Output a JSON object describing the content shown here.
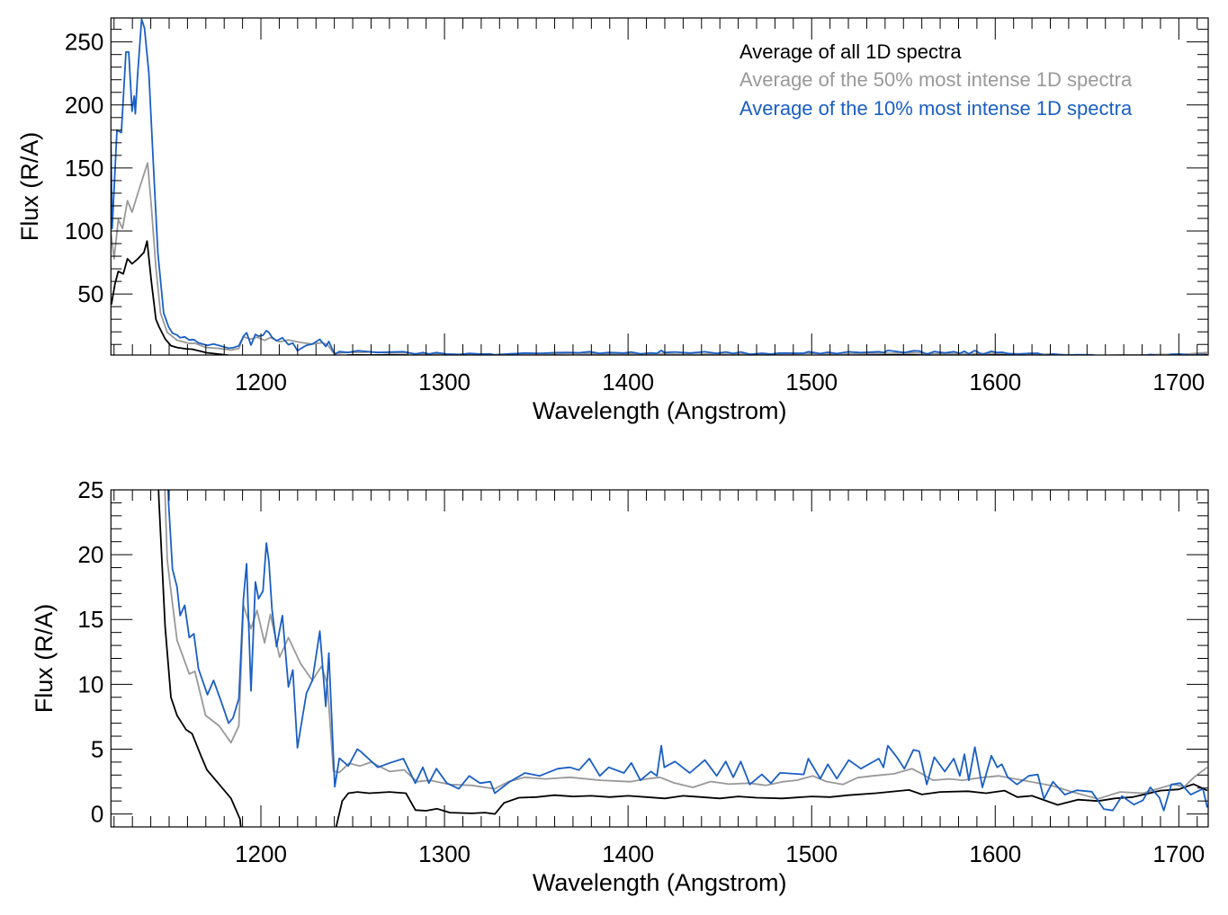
{
  "chart_data": [
    {
      "type": "line",
      "panel": "top",
      "xlabel": "Wavelength (Angstrom)",
      "ylabel": "Flux (R/A)",
      "xlim": [
        1118.3,
        1716
      ],
      "ylim": [
        1.6,
        269
      ],
      "xticks": [
        1200,
        1300,
        1400,
        1500,
        1600,
        1700
      ],
      "yticks": [
        50,
        100,
        150,
        200,
        250
      ],
      "x_minor_step": 10,
      "y_minor_step": 10,
      "legend_placement": "top-right",
      "legend": [
        {
          "label": "Average of all 1D spectra",
          "color": "#000000"
        },
        {
          "label": "Average of the 50% most intense 1D spectra",
          "color": "#999999"
        },
        {
          "label": "Average of the 10% most intense 1D spectra",
          "color": "#1a5fc4"
        }
      ]
    },
    {
      "type": "line",
      "panel": "bottom",
      "xlabel": "Wavelength (Angstrom)",
      "ylabel": "Flux (R/A)",
      "xlim": [
        1118.3,
        1716
      ],
      "ylim": [
        -1,
        25
      ],
      "xticks": [
        1200,
        1300,
        1400,
        1500,
        1600,
        1700
      ],
      "yticks": [
        0,
        5,
        10,
        15,
        20,
        25
      ],
      "x_minor_step": 10,
      "y_minor_step": 1
    }
  ],
  "series": [
    {
      "name": "Average of all 1D spectra",
      "color": "#000000",
      "points": [
        [
          1118.3,
          42
        ],
        [
          1118.6,
          42
        ],
        [
          1120.5,
          58
        ],
        [
          1122.3,
          68
        ],
        [
          1125,
          66
        ],
        [
          1127.3,
          78
        ],
        [
          1129.8,
          74
        ],
        [
          1133,
          78
        ],
        [
          1136.3,
          83
        ],
        [
          1138,
          92
        ],
        [
          1140.4,
          59
        ],
        [
          1142.8,
          30
        ],
        [
          1144.5,
          24
        ],
        [
          1147.8,
          14.5
        ],
        [
          1151,
          9
        ],
        [
          1154.3,
          7.6
        ],
        [
          1159.2,
          6.5
        ],
        [
          1162.5,
          6.2
        ],
        [
          1167.3,
          4.5
        ],
        [
          1170.6,
          3.4
        ],
        [
          1177.2,
          2.3
        ],
        [
          1183.7,
          1.2
        ],
        [
          1188.6,
          -0.4
        ],
        [
          1190.5,
          -3
        ],
        [
          1238,
          -3
        ],
        [
          1241,
          -1
        ],
        [
          1244.3,
          1.0
        ],
        [
          1247.6,
          1.6
        ],
        [
          1252.5,
          1.7
        ],
        [
          1259,
          1.6
        ],
        [
          1270,
          1.7
        ],
        [
          1279,
          1.6
        ],
        [
          1284.2,
          0.3
        ],
        [
          1290,
          0.25
        ],
        [
          1296,
          0.4
        ],
        [
          1303,
          0.1
        ],
        [
          1315,
          0.05
        ],
        [
          1322,
          0.1
        ],
        [
          1327.5,
          0
        ],
        [
          1332.4,
          0.85
        ],
        [
          1340.5,
          1.25
        ],
        [
          1350,
          1.3
        ],
        [
          1360,
          1.45
        ],
        [
          1370,
          1.35
        ],
        [
          1380,
          1.4
        ],
        [
          1390,
          1.3
        ],
        [
          1400,
          1.4
        ],
        [
          1410,
          1.3
        ],
        [
          1420,
          1.2
        ],
        [
          1430,
          1.4
        ],
        [
          1440,
          1.3
        ],
        [
          1450,
          1.2
        ],
        [
          1460,
          1.35
        ],
        [
          1470,
          1.25
        ],
        [
          1484,
          1.2
        ],
        [
          1500,
          1.35
        ],
        [
          1510,
          1.3
        ],
        [
          1520,
          1.45
        ],
        [
          1535,
          1.6
        ],
        [
          1553,
          1.85
        ],
        [
          1560,
          1.5
        ],
        [
          1570,
          1.7
        ],
        [
          1585,
          1.75
        ],
        [
          1595,
          1.6
        ],
        [
          1605,
          1.8
        ],
        [
          1612,
          1.3
        ],
        [
          1620,
          1.4
        ],
        [
          1634,
          0.7
        ],
        [
          1645,
          1.1
        ],
        [
          1656,
          1.0
        ],
        [
          1665,
          1.2
        ],
        [
          1675,
          1.3
        ],
        [
          1690,
          1.8
        ],
        [
          1700,
          1.9
        ],
        [
          1708,
          2.3
        ],
        [
          1715.5,
          1.8
        ]
      ]
    },
    {
      "name": "Average of the 50% most intense 1D spectra",
      "color": "#999999",
      "points": [
        [
          1118.3,
          99
        ],
        [
          1120,
          78
        ],
        [
          1122.3,
          109
        ],
        [
          1124.6,
          102
        ],
        [
          1127.3,
          124
        ],
        [
          1129.8,
          115
        ],
        [
          1133,
          130
        ],
        [
          1136.3,
          145
        ],
        [
          1138.3,
          154
        ],
        [
          1140.4,
          118
        ],
        [
          1142.8,
          71
        ],
        [
          1145.3,
          35
        ],
        [
          1149,
          19.6
        ],
        [
          1151,
          17.2
        ],
        [
          1154.3,
          13.4
        ],
        [
          1161,
          10.8
        ],
        [
          1164,
          11
        ],
        [
          1169.9,
          7.6
        ],
        [
          1177.2,
          6.8
        ],
        [
          1183.7,
          5.5
        ],
        [
          1188,
          6.8
        ],
        [
          1190.5,
          16.1
        ],
        [
          1194.6,
          14.3
        ],
        [
          1197.9,
          15.7
        ],
        [
          1202,
          13.2
        ],
        [
          1205.2,
          15.4
        ],
        [
          1210.2,
          12.1
        ],
        [
          1215,
          13.6
        ],
        [
          1221.6,
          11.6
        ],
        [
          1228,
          10.3
        ],
        [
          1233,
          11.4
        ],
        [
          1236.2,
          10
        ],
        [
          1239.5,
          3.3
        ],
        [
          1242.7,
          3.2
        ],
        [
          1248,
          3.9
        ],
        [
          1254,
          3.7
        ],
        [
          1260,
          4.0
        ],
        [
          1270.2,
          3.27
        ],
        [
          1278,
          3.4
        ],
        [
          1284.9,
          2.49
        ],
        [
          1292,
          2.6
        ],
        [
          1302.9,
          2.27
        ],
        [
          1315,
          2.2
        ],
        [
          1327.4,
          1.94
        ],
        [
          1335,
          2.5
        ],
        [
          1343.8,
          2.83
        ],
        [
          1355,
          2.7
        ],
        [
          1368.3,
          2.83
        ],
        [
          1385,
          2.6
        ],
        [
          1401,
          2.49
        ],
        [
          1410,
          2.7
        ],
        [
          1417.3,
          2.83
        ],
        [
          1425,
          2.4
        ],
        [
          1435.3,
          2.05
        ],
        [
          1445,
          2.5
        ],
        [
          1455,
          2.3
        ],
        [
          1466.3,
          2.38
        ],
        [
          1475,
          2.2
        ],
        [
          1484.3,
          2.49
        ],
        [
          1492,
          2.6
        ],
        [
          1500.6,
          2.94
        ],
        [
          1508,
          2.5
        ],
        [
          1517,
          2.27
        ],
        [
          1525,
          2.8
        ],
        [
          1533.3,
          2.94
        ],
        [
          1545,
          3.1
        ],
        [
          1554.6,
          3.49
        ],
        [
          1560,
          3.1
        ],
        [
          1566,
          2.6
        ],
        [
          1575,
          2.7
        ],
        [
          1582.3,
          2.6
        ],
        [
          1592,
          2.8
        ],
        [
          1602,
          2.94
        ],
        [
          1615,
          2.6
        ],
        [
          1631.4,
          2.16
        ],
        [
          1642,
          1.7
        ],
        [
          1655.9,
          1.16
        ],
        [
          1668,
          1.7
        ],
        [
          1680.4,
          1.6
        ],
        [
          1690,
          2.0
        ],
        [
          1696.7,
          2.27
        ],
        [
          1703,
          2.1
        ],
        [
          1708.2,
          2.83
        ],
        [
          1715.5,
          3.6
        ]
      ]
    },
    {
      "name": "Average of the 10% most intense 1D spectra",
      "color": "#1a5fc4",
      "points": [
        [
          1118.3,
          171
        ],
        [
          1119,
          102
        ],
        [
          1121.6,
          180
        ],
        [
          1124,
          178
        ],
        [
          1126.5,
          242
        ],
        [
          1128,
          242
        ],
        [
          1129.8,
          195
        ],
        [
          1131,
          207
        ],
        [
          1131.6,
          193
        ],
        [
          1132.8,
          223
        ],
        [
          1135,
          268
        ],
        [
          1136.6,
          261
        ],
        [
          1139,
          225
        ],
        [
          1141.4,
          154
        ],
        [
          1143.9,
          82.6
        ],
        [
          1147,
          35
        ],
        [
          1149.7,
          24
        ],
        [
          1151.8,
          18.9
        ],
        [
          1154.3,
          17.5
        ],
        [
          1156,
          15.3
        ],
        [
          1158.5,
          16.1
        ],
        [
          1161,
          13.6
        ],
        [
          1163.5,
          13.9
        ],
        [
          1166,
          11.2
        ],
        [
          1170.9,
          9.2
        ],
        [
          1174.2,
          10.3
        ],
        [
          1178.3,
          8.7
        ],
        [
          1182.4,
          7.0
        ],
        [
          1184.8,
          7.4
        ],
        [
          1188,
          8.9
        ],
        [
          1190.5,
          16.6
        ],
        [
          1192.2,
          19.3
        ],
        [
          1194.6,
          9.5
        ],
        [
          1197,
          17.9
        ],
        [
          1198.7,
          16.6
        ],
        [
          1201.1,
          17.2
        ],
        [
          1203,
          20.9
        ],
        [
          1204.4,
          19.4
        ],
        [
          1206,
          15.8
        ],
        [
          1208.5,
          12.9
        ],
        [
          1211.7,
          15.3
        ],
        [
          1215,
          9.8
        ],
        [
          1217.4,
          11.1
        ],
        [
          1219.9,
          5.1
        ],
        [
          1224.8,
          9.3
        ],
        [
          1228,
          10.3
        ],
        [
          1232.1,
          14.1
        ],
        [
          1235.3,
          8.3
        ],
        [
          1237,
          12.4
        ],
        [
          1240.2,
          2.1
        ],
        [
          1242.7,
          4.3
        ],
        [
          1247.6,
          3.7
        ],
        [
          1252.5,
          5.0
        ],
        [
          1254.5,
          4.8
        ],
        [
          1263.7,
          3.6
        ],
        [
          1270.2,
          3.94
        ],
        [
          1277.6,
          4.27
        ],
        [
          1284.1,
          2.38
        ],
        [
          1288.2,
          3.6
        ],
        [
          1291.5,
          2.38
        ],
        [
          1295.6,
          3.49
        ],
        [
          1301.3,
          2.38
        ],
        [
          1307.8,
          1.94
        ],
        [
          1313.5,
          2.94
        ],
        [
          1319.3,
          2.38
        ],
        [
          1325,
          2.49
        ],
        [
          1327.4,
          1.6
        ],
        [
          1335.6,
          2.49
        ],
        [
          1343.8,
          3.16
        ],
        [
          1351.9,
          2.94
        ],
        [
          1361.7,
          3.49
        ],
        [
          1368.3,
          3.6
        ],
        [
          1373.2,
          3.38
        ],
        [
          1378.9,
          4.27
        ],
        [
          1384.6,
          2.94
        ],
        [
          1389.5,
          3.6
        ],
        [
          1397.7,
          3.16
        ],
        [
          1401.8,
          3.94
        ],
        [
          1406.7,
          2.6
        ],
        [
          1412.4,
          3.27
        ],
        [
          1415.7,
          2.94
        ],
        [
          1418.1,
          5.27
        ],
        [
          1419.7,
          3.6
        ],
        [
          1425.5,
          4.05
        ],
        [
          1433.6,
          3.16
        ],
        [
          1441.8,
          4.16
        ],
        [
          1448.3,
          2.94
        ],
        [
          1453.2,
          4.05
        ],
        [
          1457.3,
          2.83
        ],
        [
          1461.4,
          4.05
        ],
        [
          1466.3,
          2.27
        ],
        [
          1472.9,
          3.05
        ],
        [
          1477.8,
          2.38
        ],
        [
          1482.7,
          3.16
        ],
        [
          1484.3,
          3.16
        ],
        [
          1495.7,
          3.05
        ],
        [
          1498.2,
          4.27
        ],
        [
          1504.7,
          2.72
        ],
        [
          1508.8,
          3.83
        ],
        [
          1513.7,
          2.72
        ],
        [
          1520.2,
          4.16
        ],
        [
          1526.8,
          3.49
        ],
        [
          1536.6,
          4.27
        ],
        [
          1539.1,
          3.6
        ],
        [
          1541.5,
          5.27
        ],
        [
          1546.4,
          4.38
        ],
        [
          1550.5,
          3.49
        ],
        [
          1555.4,
          4.94
        ],
        [
          1558.6,
          4.83
        ],
        [
          1562.7,
          2.27
        ],
        [
          1566.8,
          4.38
        ],
        [
          1572.5,
          3.27
        ],
        [
          1577.4,
          4.27
        ],
        [
          1580.7,
          2.94
        ],
        [
          1583.2,
          4.6
        ],
        [
          1585.6,
          2.6
        ],
        [
          1588.9,
          5.16
        ],
        [
          1593,
          2.05
        ],
        [
          1597.9,
          4.49
        ],
        [
          1601.1,
          3.6
        ],
        [
          1603.6,
          3.83
        ],
        [
          1606.8,
          2.83
        ],
        [
          1611.8,
          2.27
        ],
        [
          1618.3,
          2.94
        ],
        [
          1623.2,
          3.05
        ],
        [
          1626.5,
          1.16
        ],
        [
          1631.4,
          2.49
        ],
        [
          1637.9,
          1.49
        ],
        [
          1644.4,
          1.83
        ],
        [
          1652.6,
          1.72
        ],
        [
          1659.1,
          0.38
        ],
        [
          1664,
          0.27
        ],
        [
          1669,
          1.38
        ],
        [
          1675.5,
          0.72
        ],
        [
          1680.4,
          1.05
        ],
        [
          1684.5,
          2.05
        ],
        [
          1689.4,
          1.27
        ],
        [
          1691.8,
          0.27
        ],
        [
          1695.9,
          2.27
        ],
        [
          1700.8,
          2.38
        ],
        [
          1706.5,
          1.49
        ],
        [
          1713.1,
          1.94
        ],
        [
          1715.5,
          0.49
        ]
      ]
    }
  ]
}
